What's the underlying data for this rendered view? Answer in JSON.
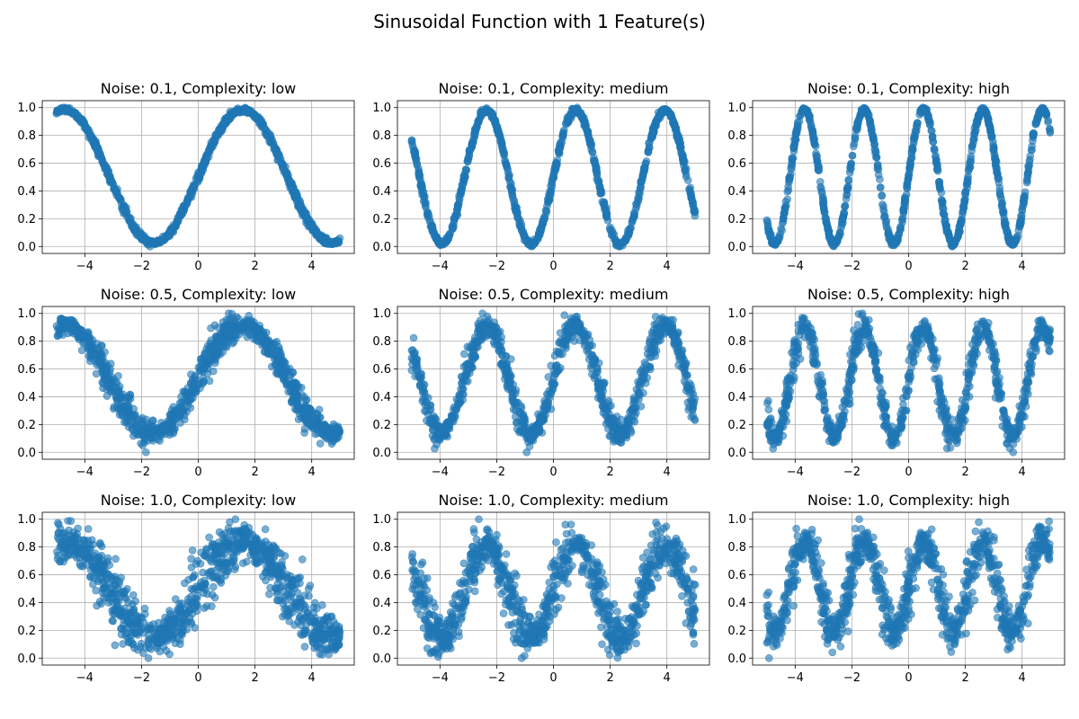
{
  "figure": {
    "title": "Sinusoidal Function with 1 Feature(s)"
  },
  "chart_data": [
    {
      "type": "scatter",
      "title": "Noise: 0.1, Complexity: low",
      "noise": 0.1,
      "frequency": 1,
      "n_points": 1000,
      "x_range": [
        -5,
        5
      ],
      "xlim": [
        -5.5,
        5.5
      ],
      "ylim": [
        -0.05,
        1.05
      ],
      "xticks": [
        -4,
        -2,
        0,
        2,
        4
      ],
      "yticks": [
        0.0,
        0.2,
        0.4,
        0.6,
        0.8,
        1.0
      ],
      "grid": true,
      "color": "#1f77b4"
    },
    {
      "type": "scatter",
      "title": "Noise: 0.1, Complexity: medium",
      "noise": 0.1,
      "frequency": 2,
      "n_points": 1000,
      "x_range": [
        -5,
        5
      ],
      "xlim": [
        -5.5,
        5.5
      ],
      "ylim": [
        -0.05,
        1.05
      ],
      "xticks": [
        -4,
        -2,
        0,
        2,
        4
      ],
      "yticks": [
        0.0,
        0.2,
        0.4,
        0.6,
        0.8,
        1.0
      ],
      "grid": true,
      "color": "#1f77b4"
    },
    {
      "type": "scatter",
      "title": "Noise: 0.1, Complexity: high",
      "noise": 0.1,
      "frequency": 3,
      "n_points": 1000,
      "x_range": [
        -5,
        5
      ],
      "xlim": [
        -5.5,
        5.5
      ],
      "ylim": [
        -0.05,
        1.05
      ],
      "xticks": [
        -4,
        -2,
        0,
        2,
        4
      ],
      "yticks": [
        0.0,
        0.2,
        0.4,
        0.6,
        0.8,
        1.0
      ],
      "grid": true,
      "color": "#1f77b4"
    },
    {
      "type": "scatter",
      "title": "Noise: 0.5, Complexity: low",
      "noise": 0.5,
      "frequency": 1,
      "n_points": 1000,
      "x_range": [
        -5,
        5
      ],
      "xlim": [
        -5.5,
        5.5
      ],
      "ylim": [
        -0.05,
        1.05
      ],
      "xticks": [
        -4,
        -2,
        0,
        2,
        4
      ],
      "yticks": [
        0.0,
        0.2,
        0.4,
        0.6,
        0.8,
        1.0
      ],
      "grid": true,
      "color": "#1f77b4"
    },
    {
      "type": "scatter",
      "title": "Noise: 0.5, Complexity: medium",
      "noise": 0.5,
      "frequency": 2,
      "n_points": 1000,
      "x_range": [
        -5,
        5
      ],
      "xlim": [
        -5.5,
        5.5
      ],
      "ylim": [
        -0.05,
        1.05
      ],
      "xticks": [
        -4,
        -2,
        0,
        2,
        4
      ],
      "yticks": [
        0.0,
        0.2,
        0.4,
        0.6,
        0.8,
        1.0
      ],
      "grid": true,
      "color": "#1f77b4"
    },
    {
      "type": "scatter",
      "title": "Noise: 0.5, Complexity: high",
      "noise": 0.5,
      "frequency": 3,
      "n_points": 1000,
      "x_range": [
        -5,
        5
      ],
      "xlim": [
        -5.5,
        5.5
      ],
      "ylim": [
        -0.05,
        1.05
      ],
      "xticks": [
        -4,
        -2,
        0,
        2,
        4
      ],
      "yticks": [
        0.0,
        0.2,
        0.4,
        0.6,
        0.8,
        1.0
      ],
      "grid": true,
      "color": "#1f77b4"
    },
    {
      "type": "scatter",
      "title": "Noise: 1.0, Complexity: low",
      "noise": 1.0,
      "frequency": 1,
      "n_points": 1000,
      "x_range": [
        -5,
        5
      ],
      "xlim": [
        -5.5,
        5.5
      ],
      "ylim": [
        -0.05,
        1.05
      ],
      "xticks": [
        -4,
        -2,
        0,
        2,
        4
      ],
      "yticks": [
        0.0,
        0.2,
        0.4,
        0.6,
        0.8,
        1.0
      ],
      "grid": true,
      "color": "#1f77b4"
    },
    {
      "type": "scatter",
      "title": "Noise: 1.0, Complexity: medium",
      "noise": 1.0,
      "frequency": 2,
      "n_points": 1000,
      "x_range": [
        -5,
        5
      ],
      "xlim": [
        -5.5,
        5.5
      ],
      "ylim": [
        -0.05,
        1.05
      ],
      "xticks": [
        -4,
        -2,
        0,
        2,
        4
      ],
      "yticks": [
        0.0,
        0.2,
        0.4,
        0.6,
        0.8,
        1.0
      ],
      "grid": true,
      "color": "#1f77b4"
    },
    {
      "type": "scatter",
      "title": "Noise: 1.0, Complexity: high",
      "noise": 1.0,
      "frequency": 3,
      "n_points": 1000,
      "x_range": [
        -5,
        5
      ],
      "xlim": [
        -5.5,
        5.5
      ],
      "ylim": [
        -0.05,
        1.05
      ],
      "xticks": [
        -4,
        -2,
        0,
        2,
        4
      ],
      "yticks": [
        0.0,
        0.2,
        0.4,
        0.6,
        0.8,
        1.0
      ],
      "grid": true,
      "color": "#1f77b4"
    }
  ]
}
